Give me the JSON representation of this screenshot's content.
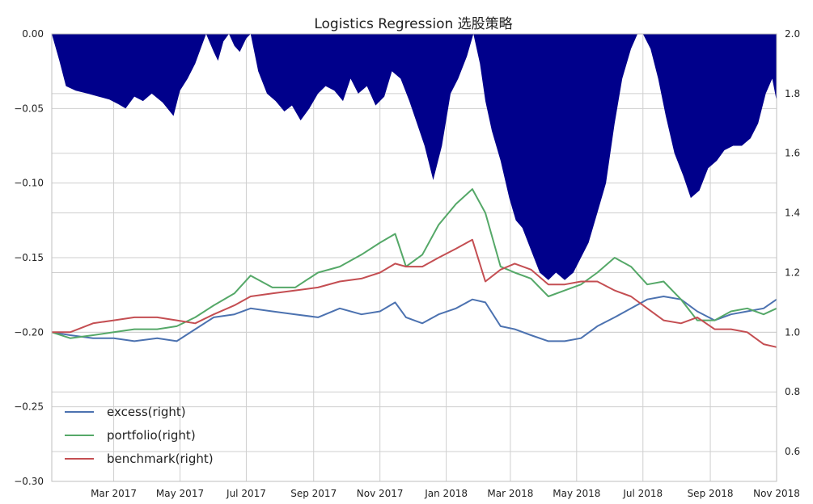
{
  "chart_data": {
    "type": "line",
    "title": "Logistics Regression 选股策略",
    "x_ticks": [
      "Mar 2017",
      "May 2017",
      "Jul 2017",
      "Sep 2017",
      "Nov 2017",
      "Jan 2018",
      "Mar 2018",
      "May 2018",
      "Jul 2018",
      "Sep 2018",
      "Nov 2018"
    ],
    "x_range": [
      "2017-01-03",
      "2018-11-01"
    ],
    "left_axis": {
      "range": [
        -0.3,
        0.0
      ],
      "ticks": [
        "−0.30",
        "−0.25",
        "−0.20",
        "−0.15",
        "−0.10",
        "−0.05",
        "0.00"
      ]
    },
    "right_axis": {
      "range": [
        0.5,
        2.0
      ],
      "ticks": [
        "0.6",
        "0.8",
        "1.0",
        "1.2",
        "1.4",
        "1.6",
        "1.8",
        "2.0"
      ]
    },
    "grid": true,
    "legend_position": "lower-left",
    "legend": [
      "excess(right)",
      "portfolio(right)",
      "benchmark(right)"
    ],
    "drawdown": {
      "axis": "left",
      "color": "#00008b",
      "x": [
        "2017-01-03",
        "2017-01-10",
        "2017-01-16",
        "2017-01-25",
        "2017-02-05",
        "2017-02-15",
        "2017-02-25",
        "2017-03-05",
        "2017-03-12",
        "2017-03-20",
        "2017-03-28",
        "2017-04-05",
        "2017-04-15",
        "2017-04-25",
        "2017-05-01",
        "2017-05-08",
        "2017-05-15",
        "2017-05-20",
        "2017-05-25",
        "2017-06-01",
        "2017-06-05",
        "2017-06-10",
        "2017-06-15",
        "2017-06-20",
        "2017-06-25",
        "2017-07-01",
        "2017-07-05",
        "2017-07-12",
        "2017-07-20",
        "2017-07-28",
        "2017-08-05",
        "2017-08-12",
        "2017-08-20",
        "2017-08-28",
        "2017-09-05",
        "2017-09-12",
        "2017-09-20",
        "2017-09-28",
        "2017-10-05",
        "2017-10-12",
        "2017-10-20",
        "2017-10-28",
        "2017-11-05",
        "2017-11-12",
        "2017-11-20",
        "2017-11-28",
        "2017-12-05",
        "2017-12-12",
        "2017-12-20",
        "2017-12-28",
        "2018-01-05",
        "2018-01-12",
        "2018-01-20",
        "2018-01-26",
        "2018-02-01",
        "2018-02-06",
        "2018-02-12",
        "2018-02-20",
        "2018-02-28",
        "2018-03-06",
        "2018-03-12",
        "2018-03-20",
        "2018-03-28",
        "2018-04-05",
        "2018-04-12",
        "2018-04-20",
        "2018-04-28",
        "2018-05-05",
        "2018-05-12",
        "2018-05-20",
        "2018-05-28",
        "2018-06-05",
        "2018-06-12",
        "2018-06-20",
        "2018-06-26",
        "2018-07-01",
        "2018-07-08",
        "2018-07-15",
        "2018-07-22",
        "2018-07-30",
        "2018-08-07",
        "2018-08-14",
        "2018-08-22",
        "2018-08-30",
        "2018-09-07",
        "2018-09-14",
        "2018-09-22",
        "2018-09-30",
        "2018-10-08",
        "2018-10-15",
        "2018-10-22",
        "2018-10-28",
        "2018-11-01"
      ],
      "values": [
        0.0,
        -0.018,
        -0.035,
        -0.038,
        -0.04,
        -0.042,
        -0.044,
        -0.047,
        -0.05,
        -0.042,
        -0.045,
        -0.04,
        -0.046,
        -0.055,
        -0.038,
        -0.03,
        -0.02,
        -0.01,
        0.0,
        -0.012,
        -0.018,
        -0.005,
        0.0,
        -0.008,
        -0.012,
        -0.003,
        0.0,
        -0.025,
        -0.04,
        -0.045,
        -0.052,
        -0.048,
        -0.058,
        -0.05,
        -0.04,
        -0.035,
        -0.038,
        -0.045,
        -0.03,
        -0.04,
        -0.035,
        -0.048,
        -0.042,
        -0.025,
        -0.03,
        -0.045,
        -0.06,
        -0.075,
        -0.098,
        -0.075,
        -0.04,
        -0.03,
        -0.015,
        0.0,
        -0.02,
        -0.045,
        -0.065,
        -0.085,
        -0.11,
        -0.125,
        -0.13,
        -0.145,
        -0.16,
        -0.165,
        -0.16,
        -0.165,
        -0.16,
        -0.15,
        -0.14,
        -0.12,
        -0.1,
        -0.06,
        -0.03,
        -0.01,
        0.0,
        0.0,
        -0.01,
        -0.03,
        -0.055,
        -0.08,
        -0.095,
        -0.11,
        -0.105,
        -0.09,
        -0.085,
        -0.078,
        -0.075,
        -0.075,
        -0.07,
        -0.06,
        -0.04,
        -0.03,
        -0.045
      ]
    },
    "series": [
      {
        "name": "excess(right)",
        "color": "#4c72b0",
        "axis": "right",
        "x": [
          "2017-01-03",
          "2017-01-20",
          "2017-02-10",
          "2017-03-01",
          "2017-03-20",
          "2017-04-10",
          "2017-04-28",
          "2017-05-15",
          "2017-06-01",
          "2017-06-20",
          "2017-07-05",
          "2017-07-25",
          "2017-08-15",
          "2017-09-05",
          "2017-09-25",
          "2017-10-15",
          "2017-11-01",
          "2017-11-15",
          "2017-11-25",
          "2017-12-10",
          "2017-12-25",
          "2018-01-10",
          "2018-01-25",
          "2018-02-06",
          "2018-02-20",
          "2018-03-05",
          "2018-03-20",
          "2018-04-05",
          "2018-04-20",
          "2018-05-05",
          "2018-05-20",
          "2018-06-05",
          "2018-06-20",
          "2018-07-05",
          "2018-07-20",
          "2018-08-05",
          "2018-08-20",
          "2018-09-05",
          "2018-09-20",
          "2018-10-05",
          "2018-10-20",
          "2018-11-01"
        ],
        "values": [
          1.0,
          0.99,
          0.98,
          0.98,
          0.97,
          0.98,
          0.97,
          1.01,
          1.05,
          1.06,
          1.08,
          1.07,
          1.06,
          1.05,
          1.08,
          1.06,
          1.07,
          1.1,
          1.05,
          1.03,
          1.06,
          1.08,
          1.11,
          1.1,
          1.02,
          1.01,
          0.99,
          0.97,
          0.97,
          0.98,
          1.02,
          1.05,
          1.08,
          1.11,
          1.12,
          1.11,
          1.07,
          1.04,
          1.06,
          1.07,
          1.08,
          1.11
        ]
      },
      {
        "name": "portfolio(right)",
        "color": "#55a868",
        "axis": "right",
        "x": [
          "2017-01-03",
          "2017-01-20",
          "2017-02-10",
          "2017-03-01",
          "2017-03-20",
          "2017-04-10",
          "2017-04-28",
          "2017-05-15",
          "2017-06-01",
          "2017-06-20",
          "2017-07-05",
          "2017-07-25",
          "2017-08-15",
          "2017-09-05",
          "2017-09-25",
          "2017-10-15",
          "2017-11-01",
          "2017-11-15",
          "2017-11-25",
          "2017-12-10",
          "2017-12-25",
          "2018-01-10",
          "2018-01-25",
          "2018-02-06",
          "2018-02-20",
          "2018-03-05",
          "2018-03-20",
          "2018-04-05",
          "2018-04-20",
          "2018-05-05",
          "2018-05-20",
          "2018-06-05",
          "2018-06-20",
          "2018-07-05",
          "2018-07-20",
          "2018-08-05",
          "2018-08-20",
          "2018-09-05",
          "2018-09-20",
          "2018-10-05",
          "2018-10-20",
          "2018-11-01"
        ],
        "values": [
          1.0,
          0.98,
          0.99,
          1.0,
          1.01,
          1.01,
          1.02,
          1.05,
          1.09,
          1.13,
          1.19,
          1.15,
          1.15,
          1.2,
          1.22,
          1.26,
          1.3,
          1.33,
          1.22,
          1.26,
          1.36,
          1.43,
          1.48,
          1.4,
          1.22,
          1.2,
          1.18,
          1.12,
          1.14,
          1.16,
          1.2,
          1.25,
          1.22,
          1.16,
          1.17,
          1.11,
          1.04,
          1.04,
          1.07,
          1.08,
          1.06,
          1.08
        ]
      },
      {
        "name": "benchmark(right)",
        "color": "#c44e52",
        "axis": "right",
        "x": [
          "2017-01-03",
          "2017-01-20",
          "2017-02-10",
          "2017-03-01",
          "2017-03-20",
          "2017-04-10",
          "2017-04-28",
          "2017-05-15",
          "2017-06-01",
          "2017-06-20",
          "2017-07-05",
          "2017-07-25",
          "2017-08-15",
          "2017-09-05",
          "2017-09-25",
          "2017-10-15",
          "2017-11-01",
          "2017-11-15",
          "2017-11-25",
          "2017-12-10",
          "2017-12-25",
          "2018-01-10",
          "2018-01-25",
          "2018-02-06",
          "2018-02-20",
          "2018-03-05",
          "2018-03-20",
          "2018-04-05",
          "2018-04-20",
          "2018-05-05",
          "2018-05-20",
          "2018-06-05",
          "2018-06-20",
          "2018-07-05",
          "2018-07-20",
          "2018-08-05",
          "2018-08-20",
          "2018-09-05",
          "2018-09-20",
          "2018-10-05",
          "2018-10-20",
          "2018-11-01"
        ],
        "values": [
          1.0,
          1.0,
          1.03,
          1.04,
          1.05,
          1.05,
          1.04,
          1.03,
          1.06,
          1.09,
          1.12,
          1.13,
          1.14,
          1.15,
          1.17,
          1.18,
          1.2,
          1.23,
          1.22,
          1.22,
          1.25,
          1.28,
          1.31,
          1.17,
          1.21,
          1.23,
          1.21,
          1.16,
          1.16,
          1.17,
          1.17,
          1.14,
          1.12,
          1.08,
          1.04,
          1.03,
          1.05,
          1.01,
          1.01,
          1.0,
          0.96,
          0.95
        ]
      }
    ]
  }
}
